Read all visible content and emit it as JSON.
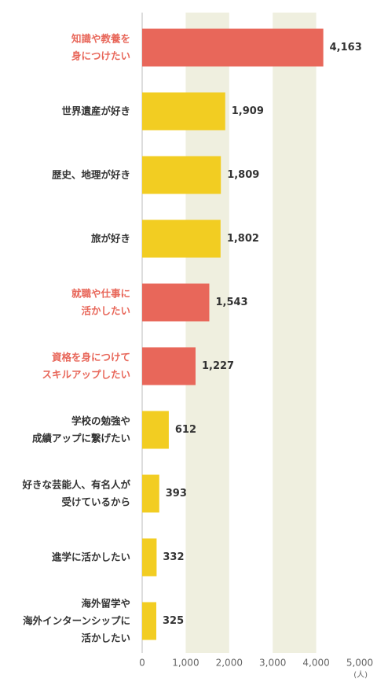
{
  "chart_data": {
    "type": "bar",
    "orientation": "horizontal",
    "categories": [
      "知識や教養を\n身につけたい",
      "世界遺産が好き",
      "歴史、地理が好き",
      "旅が好き",
      "就職や仕事に\n活かしたい",
      "資格を身につけて\nスキルアップしたい",
      "学校の勉強や\n成績アップに繋げたい",
      "好きな芸能人、有名人が\n受けているから",
      "進学に活かしたい",
      "海外留学や\n海外インターンシップに\n活かしたい"
    ],
    "values": [
      4163,
      1909,
      1809,
      1802,
      1543,
      1227,
      612,
      393,
      332,
      325
    ],
    "value_labels": [
      "4,163",
      "1,909",
      "1,809",
      "1,802",
      "1,543",
      "1,227",
      "612",
      "393",
      "332",
      "325"
    ],
    "colors": [
      "#e8675a",
      "#f2cd22",
      "#f2cd22",
      "#f2cd22",
      "#e8675a",
      "#e8675a",
      "#f2cd22",
      "#f2cd22",
      "#f2cd22",
      "#f2cd22"
    ],
    "label_colors": [
      "#e8675a",
      "#333333",
      "#333333",
      "#333333",
      "#e8675a",
      "#e8675a",
      "#333333",
      "#333333",
      "#333333",
      "#333333"
    ],
    "xlim": [
      0,
      5000
    ],
    "xticks": [
      0,
      {
        "value": 1000,
        "label": "1,000"
      },
      {
        "value": 2000,
        "label": "2,000"
      },
      {
        "value": 3000,
        "label": "3,000"
      },
      {
        "value": 4000,
        "label": "4,000"
      },
      {
        "value": 5000,
        "label": "5,000"
      }
    ],
    "x_unit": "(人)",
    "band_color": "#efefdf"
  }
}
